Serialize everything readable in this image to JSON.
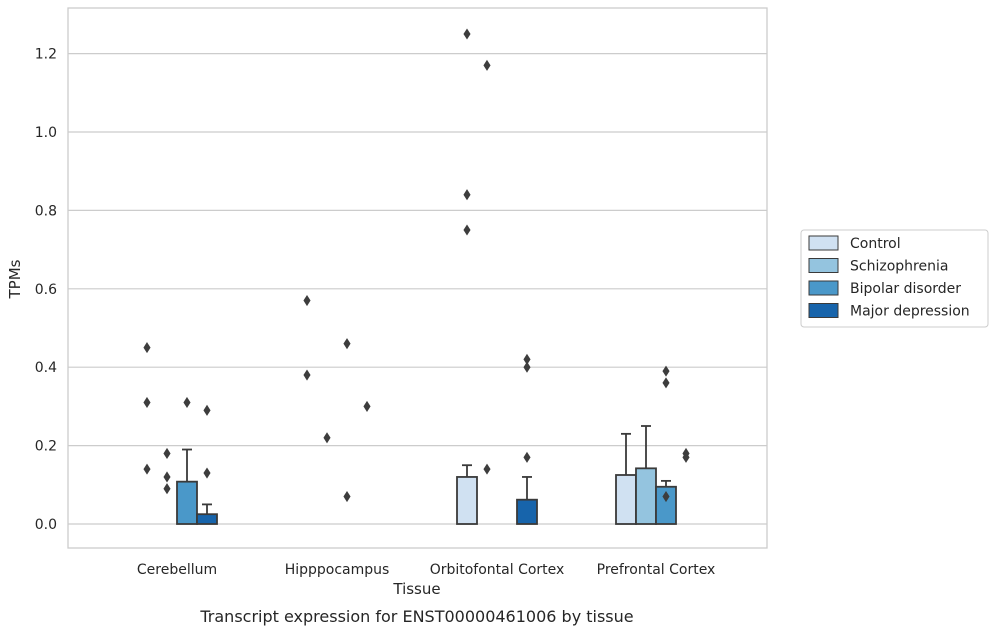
{
  "chart_data": {
    "type": "bar",
    "xlabel": "Tissue",
    "ylabel": "TPMs",
    "caption": "Transcript expression for ENST00000461006 by tissue",
    "ylim": [
      -0.06,
      1.31
    ],
    "yticks": [
      0.0,
      0.2,
      0.4,
      0.6,
      0.8,
      1.0,
      1.2
    ],
    "ytick_labels": [
      "0.0",
      "0.2",
      "0.4",
      "0.6",
      "0.8",
      "1.0",
      "1.2"
    ],
    "grid": true,
    "legend_position": "right",
    "categories": [
      "Cerebellum",
      "Hipppocampus",
      "Orbitofontal Cortex",
      "Prefrontal Cortex"
    ],
    "series": [
      {
        "name": "Control",
        "color": "#d0e1f2",
        "values": [
          0.0,
          0.0,
          0.12,
          0.125
        ],
        "error_upper": [
          null,
          null,
          0.15,
          0.23
        ],
        "outliers": [
          [
            0.45,
            0.31,
            0.14
          ],
          [
            0.57,
            0.38
          ],
          [
            1.25,
            0.84,
            0.75
          ],
          []
        ]
      },
      {
        "name": "Schizophrenia",
        "color": "#94c4df",
        "values": [
          0.0,
          0.0,
          0.0,
          0.142
        ],
        "error_upper": [
          null,
          null,
          null,
          0.25
        ],
        "outliers": [
          [
            0.18,
            0.12,
            0.09
          ],
          [
            0.22
          ],
          [
            1.17,
            0.14
          ],
          []
        ]
      },
      {
        "name": "Bipolar disorder",
        "color": "#4a98c9",
        "values": [
          0.108,
          0.0,
          0.0,
          0.095
        ],
        "error_upper": [
          0.19,
          null,
          null,
          0.11
        ],
        "outliers": [
          [
            0.31
          ],
          [
            0.46,
            0.07
          ],
          [],
          [
            0.39,
            0.36,
            0.07
          ]
        ]
      },
      {
        "name": "Major depression",
        "color": "#1764ab",
        "values": [
          0.025,
          0.0,
          0.062,
          0.0
        ],
        "error_upper": [
          0.05,
          null,
          0.12,
          null
        ],
        "outliers": [
          [
            0.29,
            0.13
          ],
          [
            0.3
          ],
          [
            0.42,
            0.4,
            0.17
          ],
          [
            0.18,
            0.17
          ]
        ]
      }
    ]
  }
}
